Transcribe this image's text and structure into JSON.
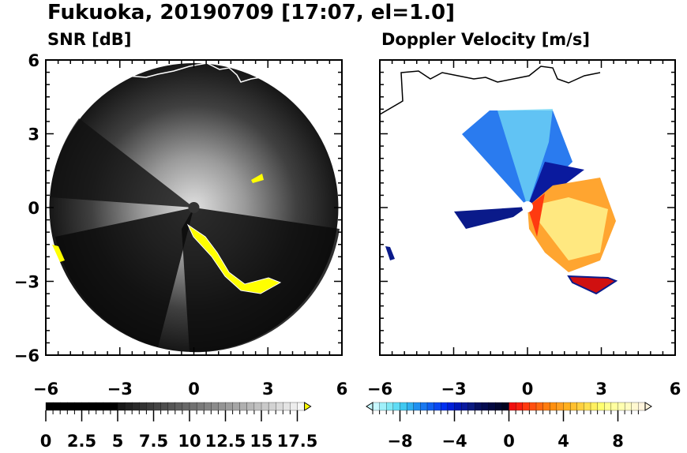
{
  "title": "Fukuoka, 20190709 [17:07, el=1.0]",
  "chart_data": [
    {
      "type": "heatmap",
      "title": "SNR [dB]",
      "xlim": [
        -6,
        6
      ],
      "ylim": [
        -6,
        6
      ],
      "xticks": [
        "−6",
        "−3",
        "0",
        "3",
        "6"
      ],
      "yticks": [
        "6",
        "3",
        "0",
        "−3",
        "−6"
      ],
      "colorbar": {
        "min": 0,
        "max": 18,
        "step": 0.5,
        "labels": [
          "0",
          "2.5",
          "5",
          "7.5",
          "10",
          "12.5",
          "15",
          "17.5"
        ],
        "label_values": [
          0,
          2.5,
          5,
          7.5,
          10,
          12.5,
          15,
          17.5
        ],
        "over_color": "#ffff00"
      }
    },
    {
      "type": "heatmap",
      "title": "Doppler Velocity [m/s]",
      "xlim": [
        -6,
        6
      ],
      "ylim": [
        -6,
        6
      ],
      "xticks": [
        "−6",
        "−3",
        "0",
        "3",
        "6"
      ],
      "yticks": [],
      "colorbar": {
        "min": -10,
        "max": 10,
        "step": 0.5,
        "labels": [
          "−8",
          "−4",
          "0",
          "4",
          "8"
        ],
        "label_values": [
          -8,
          -4,
          0,
          4,
          8
        ]
      }
    }
  ]
}
